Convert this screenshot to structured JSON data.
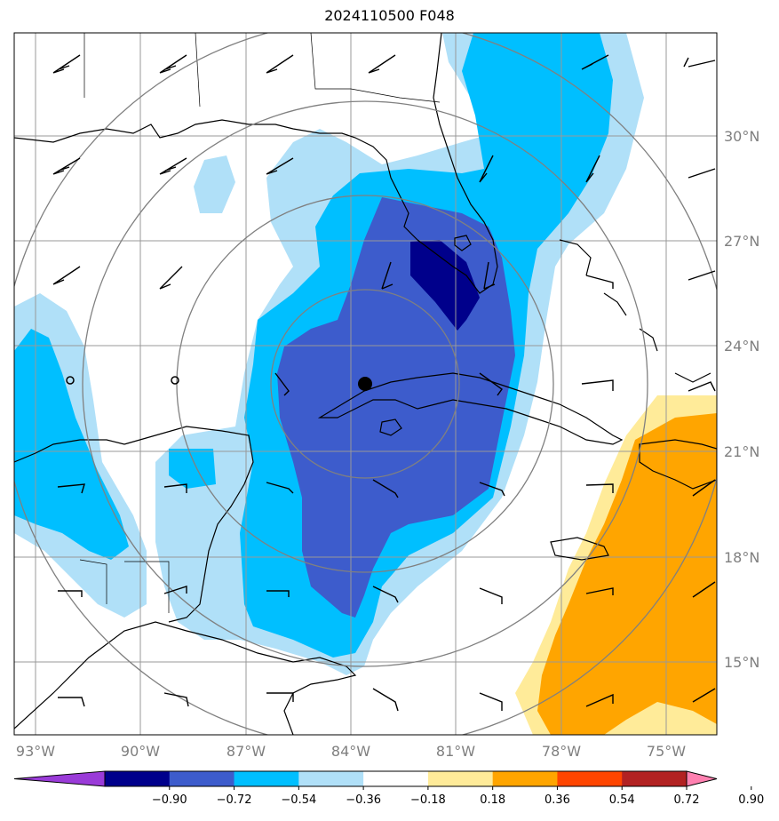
{
  "title": "2024110500 F048",
  "map": {
    "lon_labels": [
      "93°W",
      "90°W",
      "87°W",
      "84°W",
      "81°W",
      "78°W",
      "75°W"
    ],
    "lat_labels": [
      "30°N",
      "27°N",
      "24°N",
      "21°N",
      "18°N",
      "15°N"
    ],
    "center_marker": "storm-center-dot"
  },
  "colorbar": {
    "labels": [
      "−0.90",
      "−0.72",
      "−0.54",
      "−0.36",
      "−0.18",
      "0.18",
      "0.36",
      "0.54",
      "0.72",
      "0.90"
    ],
    "colors": [
      "#9a3bd8",
      "#00008b",
      "#3d5ccc",
      "#00bfff",
      "#b0e0f8",
      "#ffffff",
      "#ffeb99",
      "#ffa500",
      "#ff4500",
      "#b22222",
      "#ff80b0"
    ]
  }
}
